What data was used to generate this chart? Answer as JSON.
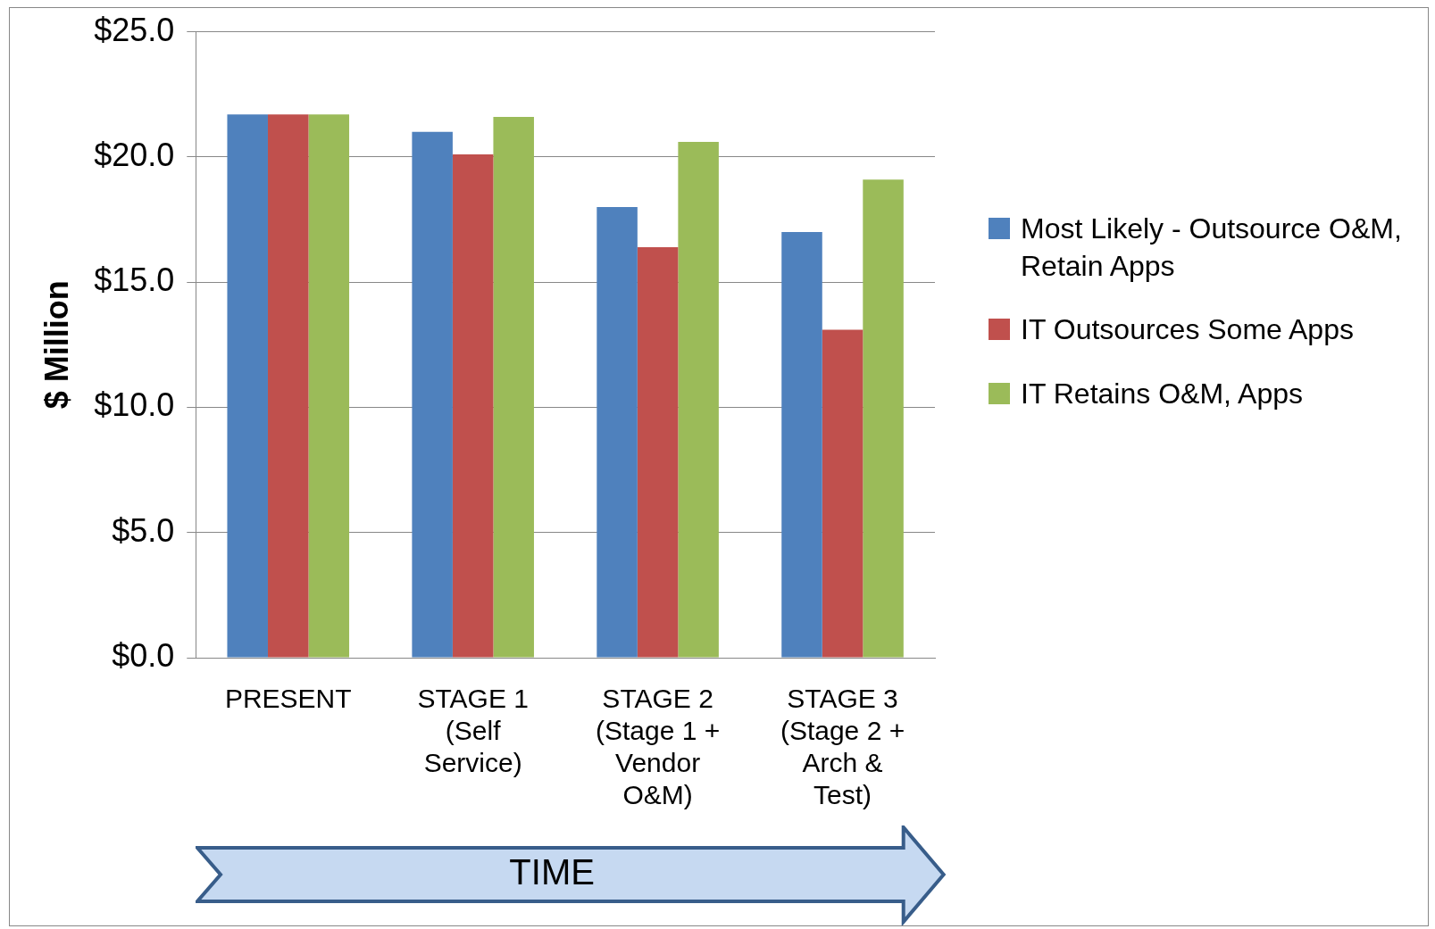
{
  "chart_data": {
    "type": "bar",
    "ylabel": "$ Million",
    "xlabel": "TIME",
    "categories": [
      "PRESENT",
      "STAGE 1 (Self Service)",
      "STAGE 2 (Stage 1 + Vendor O&M)",
      "STAGE 3 (Stage 2 + Arch & Test)"
    ],
    "series": [
      {
        "name": "Most Likely - Outsource O&M, Retain Apps",
        "color": "#4f81bd",
        "values": [
          21.7,
          21.0,
          18.0,
          17.0
        ]
      },
      {
        "name": "IT Outsources Some Apps",
        "color": "#c0504d",
        "values": [
          21.7,
          20.1,
          16.4,
          13.1
        ]
      },
      {
        "name": "IT Retains O&M, Apps",
        "color": "#9bbb59",
        "values": [
          21.7,
          21.6,
          20.6,
          19.1
        ]
      }
    ],
    "ylim": [
      0,
      25
    ],
    "yticks": [
      {
        "value": 0,
        "label": "$0.0"
      },
      {
        "value": 5,
        "label": "$5.0"
      },
      {
        "value": 10,
        "label": "$10.0"
      },
      {
        "value": 15,
        "label": "$15.0"
      },
      {
        "value": 20,
        "label": "$20.0"
      },
      {
        "value": 25,
        "label": "$25.0"
      }
    ],
    "grid": "y",
    "legend": "right"
  }
}
